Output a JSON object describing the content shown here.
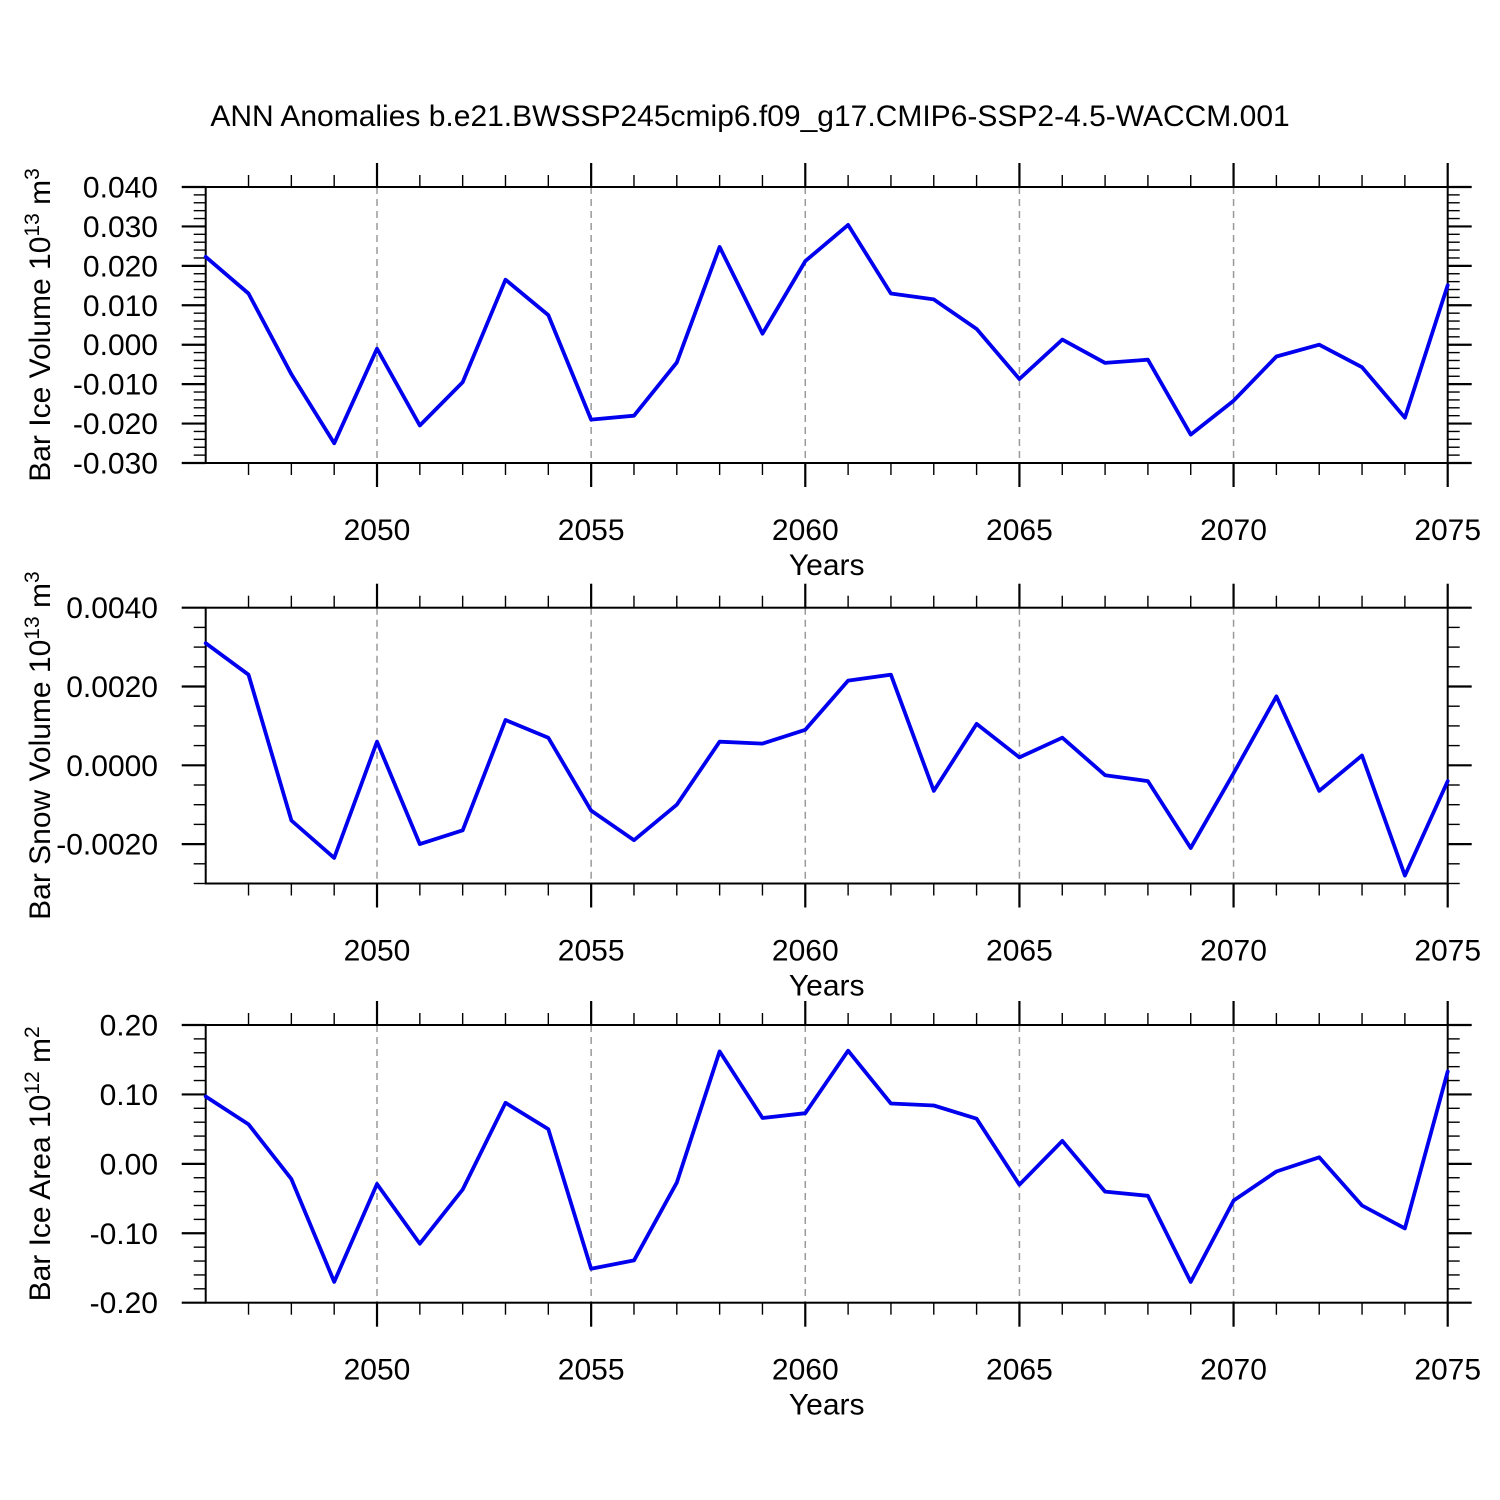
{
  "title": "ANN Anomalies b.e21.BWSSP245cmip6.f09_g17.CMIP6-SSP2-4.5-WACCM.001",
  "colors": {
    "line": "#0000ee",
    "frame": "#000000",
    "gridline": "#999999",
    "text": "#000000",
    "background": "#ffffff"
  },
  "chart_data": [
    {
      "type": "line",
      "name": "panel-bar-ice-volume",
      "xlabel": "Years",
      "ylabel": "Bar Ice Volume 10^13 m^3",
      "ylabel_rich": [
        [
          "t",
          "Bar Ice Volume 10"
        ],
        [
          "sup",
          "13"
        ],
        [
          "t",
          " m"
        ],
        [
          "sup",
          "3"
        ]
      ],
      "x": [
        2046,
        2047,
        2048,
        2049,
        2050,
        2051,
        2052,
        2053,
        2054,
        2055,
        2056,
        2057,
        2058,
        2059,
        2060,
        2061,
        2062,
        2063,
        2064,
        2065,
        2066,
        2067,
        2068,
        2069,
        2070,
        2071,
        2072,
        2073,
        2074,
        2075
      ],
      "values": [
        0.0223,
        0.013,
        -0.0075,
        -0.025,
        -0.001,
        -0.0205,
        -0.0095,
        0.0165,
        0.0075,
        -0.019,
        -0.018,
        -0.0045,
        0.0248,
        0.0028,
        0.0212,
        0.0304,
        0.013,
        0.0115,
        0.004,
        -0.0087,
        0.0013,
        -0.0046,
        -0.0038,
        -0.0228,
        -0.0142,
        -0.003,
        0.0,
        -0.0057,
        -0.0185,
        0.0151
      ],
      "xlim": [
        2046,
        2075
      ],
      "ylim": [
        -0.03,
        0.04
      ],
      "ytick_values": [
        0.04,
        0.03,
        0.02,
        0.01,
        0.0,
        -0.01,
        -0.02,
        -0.03
      ],
      "ytick_labels": [
        "0.040",
        "0.030",
        "0.020",
        "0.010",
        "0.000",
        "-0.010",
        "-0.020",
        "-0.030"
      ],
      "ytick_minor_step": 0.002,
      "xtick_major": [
        2050,
        2055,
        2060,
        2065,
        2070,
        2075
      ],
      "xtick_labels": [
        "2050",
        "2055",
        "2060",
        "2065",
        "2070",
        "2075"
      ],
      "xtick_minor_step": 1,
      "grid_x_dashed": [
        2050,
        2055,
        2060,
        2065,
        2070
      ],
      "grid": "vertical-dashed",
      "legend": "none"
    },
    {
      "type": "line",
      "name": "panel-bar-snow-volume",
      "xlabel": "Years",
      "ylabel": "Bar Snow Volume 10^13 m^3",
      "ylabel_rich": [
        [
          "t",
          "Bar Snow Volume 10"
        ],
        [
          "sup",
          "13"
        ],
        [
          "t",
          " m"
        ],
        [
          "sup",
          "3"
        ]
      ],
      "x": [
        2046,
        2047,
        2048,
        2049,
        2050,
        2051,
        2052,
        2053,
        2054,
        2055,
        2056,
        2057,
        2058,
        2059,
        2060,
        2061,
        2062,
        2063,
        2064,
        2065,
        2066,
        2067,
        2068,
        2069,
        2070,
        2071,
        2072,
        2073,
        2074,
        2075
      ],
      "values": [
        0.0031,
        0.0023,
        -0.0014,
        -0.00235,
        0.0006,
        -0.002,
        -0.00165,
        0.00115,
        0.0007,
        -0.00115,
        -0.0019,
        -0.001,
        0.0006,
        0.00055,
        0.0009,
        0.00215,
        0.0023,
        -0.00065,
        0.00105,
        0.0002,
        0.0007,
        -0.00025,
        -0.0004,
        -0.0021,
        -0.0002,
        0.00175,
        -0.00065,
        0.00025,
        -0.0028,
        -0.0004
      ],
      "xlim": [
        2046,
        2075
      ],
      "ylim": [
        -0.003,
        0.004
      ],
      "ytick_values": [
        0.004,
        0.002,
        0.0,
        -0.002
      ],
      "ytick_labels": [
        "0.0040",
        "0.0020",
        "0.0000",
        "-0.0020"
      ],
      "ytick_minor_step": 0.0005,
      "xtick_major": [
        2050,
        2055,
        2060,
        2065,
        2070,
        2075
      ],
      "xtick_labels": [
        "2050",
        "2055",
        "2060",
        "2065",
        "2070",
        "2075"
      ],
      "xtick_minor_step": 1,
      "grid_x_dashed": [
        2050,
        2055,
        2060,
        2065,
        2070
      ],
      "grid": "vertical-dashed",
      "legend": "none"
    },
    {
      "type": "line",
      "name": "panel-bar-ice-area",
      "xlabel": "Years",
      "ylabel": "Bar Ice Area 10^12 m^2",
      "ylabel_rich": [
        [
          "t",
          "Bar Ice Area 10"
        ],
        [
          "sup",
          "12"
        ],
        [
          "t",
          " m"
        ],
        [
          "sup",
          "2"
        ]
      ],
      "x": [
        2046,
        2047,
        2048,
        2049,
        2050,
        2051,
        2052,
        2053,
        2054,
        2055,
        2056,
        2057,
        2058,
        2059,
        2060,
        2061,
        2062,
        2063,
        2064,
        2065,
        2066,
        2067,
        2068,
        2069,
        2070,
        2071,
        2072,
        2073,
        2074,
        2075
      ],
      "values": [
        0.097,
        0.057,
        -0.022,
        -0.17,
        -0.029,
        -0.115,
        -0.037,
        0.088,
        0.05,
        -0.151,
        -0.139,
        -0.027,
        0.162,
        0.066,
        0.073,
        0.163,
        0.087,
        0.084,
        0.065,
        -0.03,
        0.033,
        -0.04,
        -0.046,
        -0.17,
        -0.053,
        -0.011,
        0.0095,
        -0.06,
        -0.093,
        0.133
      ],
      "xlim": [
        2046,
        2075
      ],
      "ylim": [
        -0.2,
        0.2
      ],
      "ytick_values": [
        0.2,
        0.1,
        0.0,
        -0.1,
        -0.2
      ],
      "ytick_labels": [
        "0.20",
        "0.10",
        "0.00",
        "-0.10",
        "-0.20"
      ],
      "ytick_minor_step": 0.02,
      "xtick_major": [
        2050,
        2055,
        2060,
        2065,
        2070,
        2075
      ],
      "xtick_labels": [
        "2050",
        "2055",
        "2060",
        "2065",
        "2070",
        "2075"
      ],
      "xtick_minor_step": 1,
      "grid_x_dashed": [
        2050,
        2055,
        2060,
        2065,
        2070
      ],
      "grid": "vertical-dashed",
      "legend": "none"
    }
  ]
}
